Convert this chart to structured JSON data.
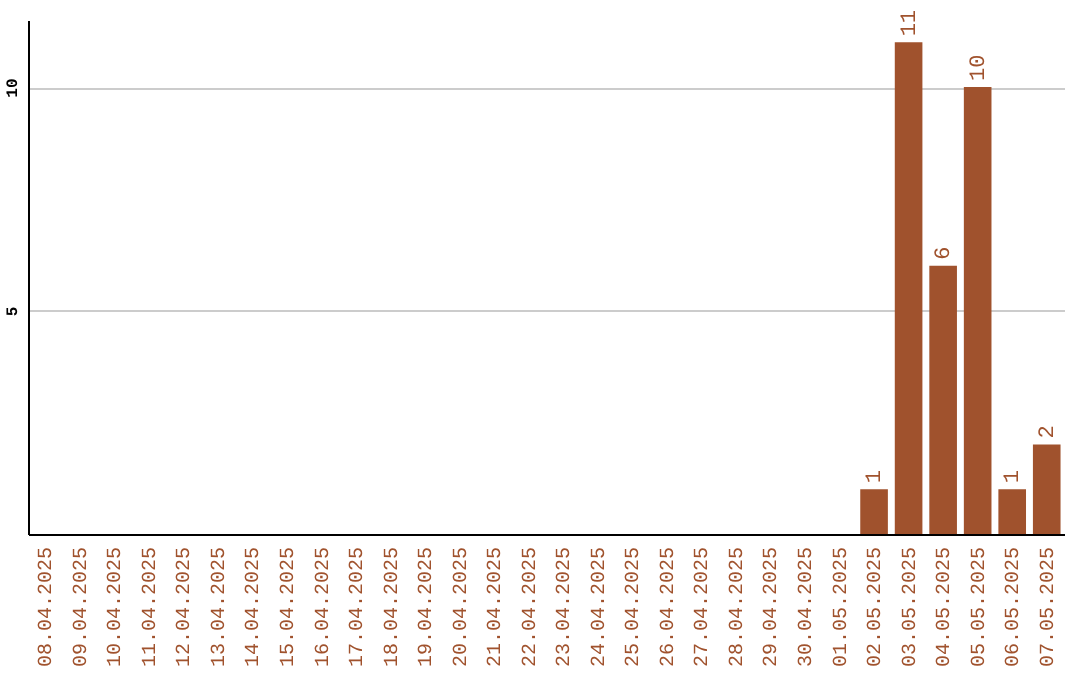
{
  "chart_data": {
    "type": "bar",
    "categories": [
      "08.04.2025",
      "09.04.2025",
      "10.04.2025",
      "11.04.2025",
      "12.04.2025",
      "13.04.2025",
      "14.04.2025",
      "15.04.2025",
      "16.04.2025",
      "17.04.2025",
      "18.04.2025",
      "19.04.2025",
      "20.04.2025",
      "21.04.2025",
      "22.04.2025",
      "23.04.2025",
      "24.04.2025",
      "25.04.2025",
      "26.04.2025",
      "27.04.2025",
      "28.04.2025",
      "29.04.2025",
      "30.04.2025",
      "01.05.2025",
      "02.05.2025",
      "03.05.2025",
      "04.05.2025",
      "05.05.2025",
      "06.05.2025",
      "07.05.2025"
    ],
    "values": [
      0,
      0,
      0,
      0,
      0,
      0,
      0,
      0,
      0,
      0,
      0,
      0,
      0,
      0,
      0,
      0,
      0,
      0,
      0,
      0,
      0,
      0,
      0,
      0,
      1,
      11,
      6,
      10,
      1,
      2
    ],
    "value_labels": [
      null,
      null,
      null,
      null,
      null,
      null,
      null,
      null,
      null,
      null,
      null,
      null,
      null,
      null,
      null,
      null,
      null,
      null,
      null,
      null,
      null,
      null,
      null,
      null,
      "1",
      "11",
      "6",
      "10",
      "1",
      "2"
    ],
    "color": "#a0522d",
    "ylim": [
      0,
      11.5
    ],
    "yticks": [
      5,
      10
    ],
    "grid": "y"
  }
}
